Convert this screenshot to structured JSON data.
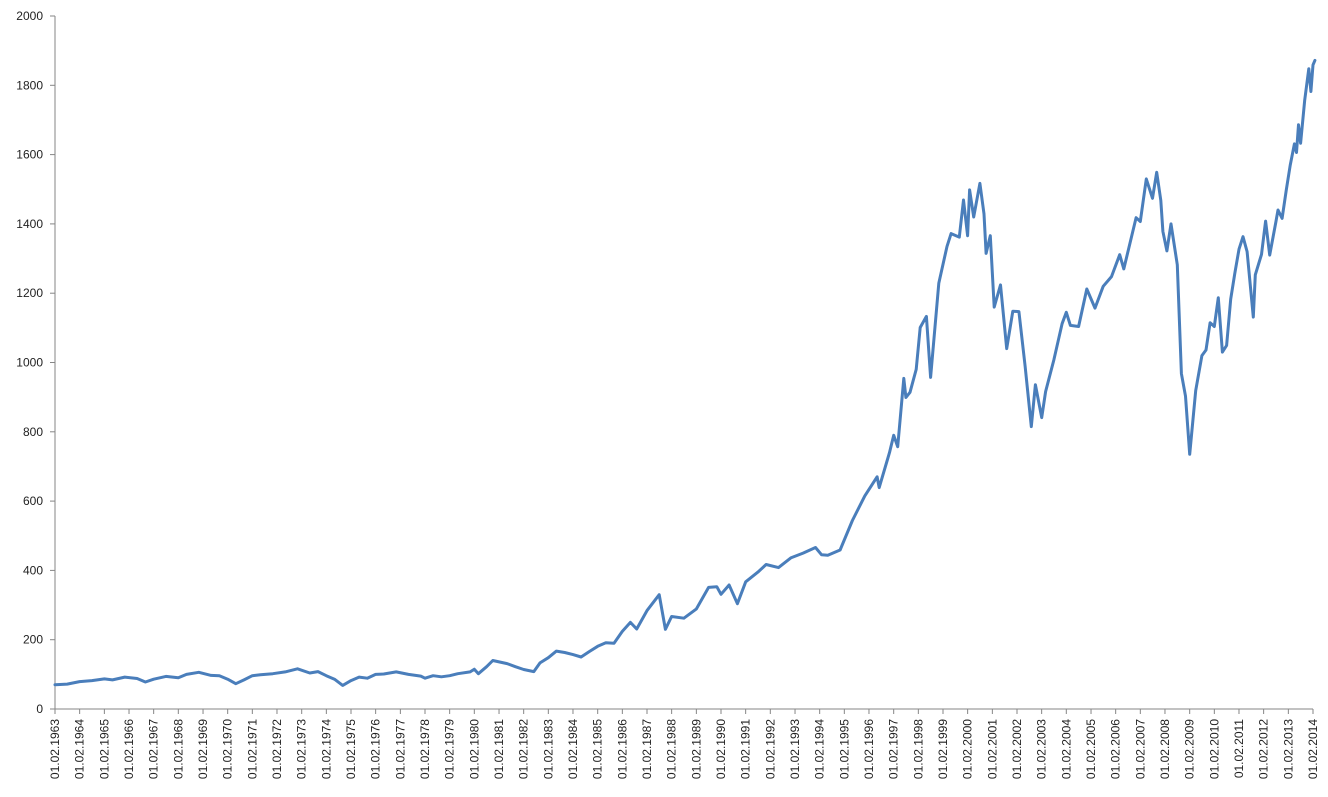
{
  "chart_data": {
    "type": "line",
    "title": "",
    "xlabel": "",
    "ylabel": "",
    "ylim": [
      0,
      2000
    ],
    "yticks": [
      0,
      200,
      400,
      600,
      800,
      1000,
      1200,
      1400,
      1600,
      1800,
      2000
    ],
    "xlim": [
      "1963-02-01",
      "2014-02-01"
    ],
    "xticks": [
      "01.02.1963",
      "01.02.1964",
      "01.02.1965",
      "01.02.1966",
      "01.02.1967",
      "01.02.1968",
      "01.02.1969",
      "01.02.1970",
      "01.02.1971",
      "01.02.1972",
      "01.02.1973",
      "01.02.1974",
      "01.02.1975",
      "01.02.1976",
      "01.02.1977",
      "01.02.1978",
      "01.02.1979",
      "01.02.1980",
      "01.02.1981",
      "01.02.1982",
      "01.02.1983",
      "01.02.1984",
      "01.02.1985",
      "01.02.1986",
      "01.02.1987",
      "01.02.1988",
      "01.02.1989",
      "01.02.1990",
      "01.02.1991",
      "01.02.1992",
      "01.02.1993",
      "01.02.1994",
      "01.02.1995",
      "01.02.1996",
      "01.02.1997",
      "01.02.1998",
      "01.02.1999",
      "01.02.2000",
      "01.02.2001",
      "01.02.2002",
      "01.02.2003",
      "01.02.2004",
      "01.02.2005",
      "01.02.2006",
      "01.02.2007",
      "01.02.2008",
      "01.02.2009",
      "01.02.2010",
      "01.02.2011",
      "01.02.2012",
      "01.02.2013",
      "01.02.2014"
    ],
    "grid": false,
    "legend": "none",
    "series": [
      {
        "color": "#4a7ebb",
        "points": [
          [
            "1963-02-01",
            70
          ],
          [
            "1963-08-01",
            72
          ],
          [
            "1964-02-01",
            79
          ],
          [
            "1964-08-01",
            82
          ],
          [
            "1965-02-01",
            87
          ],
          [
            "1965-06-01",
            84
          ],
          [
            "1965-12-01",
            92
          ],
          [
            "1966-06-01",
            88
          ],
          [
            "1966-10-01",
            78
          ],
          [
            "1967-02-01",
            86
          ],
          [
            "1967-08-01",
            94
          ],
          [
            "1968-02-01",
            90
          ],
          [
            "1968-06-01",
            100
          ],
          [
            "1968-12-01",
            106
          ],
          [
            "1969-06-01",
            97
          ],
          [
            "1969-10-01",
            96
          ],
          [
            "1970-02-01",
            86
          ],
          [
            "1970-06-01",
            73
          ],
          [
            "1970-10-01",
            84
          ],
          [
            "1971-02-01",
            96
          ],
          [
            "1971-06-01",
            99
          ],
          [
            "1971-12-01",
            102
          ],
          [
            "1972-06-01",
            107
          ],
          [
            "1972-12-01",
            116
          ],
          [
            "1973-06-01",
            104
          ],
          [
            "1973-10-01",
            108
          ],
          [
            "1974-02-01",
            96
          ],
          [
            "1974-06-01",
            86
          ],
          [
            "1974-10-01",
            68
          ],
          [
            "1975-02-01",
            82
          ],
          [
            "1975-06-01",
            92
          ],
          [
            "1975-10-01",
            89
          ],
          [
            "1976-02-01",
            100
          ],
          [
            "1976-06-01",
            101
          ],
          [
            "1976-12-01",
            107
          ],
          [
            "1977-06-01",
            100
          ],
          [
            "1977-12-01",
            95
          ],
          [
            "1978-02-01",
            89
          ],
          [
            "1978-06-01",
            96
          ],
          [
            "1978-10-01",
            93
          ],
          [
            "1979-02-01",
            96
          ],
          [
            "1979-06-01",
            102
          ],
          [
            "1979-12-01",
            107
          ],
          [
            "1980-02-01",
            115
          ],
          [
            "1980-04-01",
            102
          ],
          [
            "1980-08-01",
            122
          ],
          [
            "1980-11-01",
            140
          ],
          [
            "1981-06-01",
            131
          ],
          [
            "1981-10-01",
            122
          ],
          [
            "1982-02-01",
            114
          ],
          [
            "1982-07-01",
            108
          ],
          [
            "1982-10-01",
            133
          ],
          [
            "1983-02-01",
            148
          ],
          [
            "1983-06-01",
            167
          ],
          [
            "1983-10-01",
            163
          ],
          [
            "1984-02-01",
            157
          ],
          [
            "1984-06-01",
            150
          ],
          [
            "1984-10-01",
            166
          ],
          [
            "1985-02-01",
            181
          ],
          [
            "1985-06-01",
            191
          ],
          [
            "1985-10-01",
            190
          ],
          [
            "1986-02-01",
            224
          ],
          [
            "1986-06-01",
            250
          ],
          [
            "1986-09-01",
            231
          ],
          [
            "1987-02-01",
            284
          ],
          [
            "1987-08-01",
            330
          ],
          [
            "1987-11-01",
            230
          ],
          [
            "1988-02-01",
            267
          ],
          [
            "1988-08-01",
            262
          ],
          [
            "1989-02-01",
            289
          ],
          [
            "1989-08-01",
            351
          ],
          [
            "1989-12-01",
            353
          ],
          [
            "1990-02-01",
            331
          ],
          [
            "1990-06-01",
            358
          ],
          [
            "1990-10-01",
            304
          ],
          [
            "1991-02-01",
            367
          ],
          [
            "1991-08-01",
            395
          ],
          [
            "1991-12-01",
            417
          ],
          [
            "1992-06-01",
            408
          ],
          [
            "1992-12-01",
            436
          ],
          [
            "1993-06-01",
            450
          ],
          [
            "1993-12-01",
            466
          ],
          [
            "1994-03-01",
            445
          ],
          [
            "1994-06-01",
            444
          ],
          [
            "1994-12-01",
            459
          ],
          [
            "1995-06-01",
            544
          ],
          [
            "1995-12-01",
            615
          ],
          [
            "1996-06-01",
            670
          ],
          [
            "1996-07-01",
            639
          ],
          [
            "1996-12-01",
            740
          ],
          [
            "1997-02-01",
            790
          ],
          [
            "1997-04-01",
            757
          ],
          [
            "1997-07-01",
            954
          ],
          [
            "1997-08-01",
            899
          ],
          [
            "1997-10-01",
            914
          ],
          [
            "1998-01-01",
            980
          ],
          [
            "1998-03-01",
            1101
          ],
          [
            "1998-06-01",
            1133
          ],
          [
            "1998-08-01",
            957
          ],
          [
            "1998-12-01",
            1229
          ],
          [
            "1999-04-01",
            1335
          ],
          [
            "1999-06-01",
            1372
          ],
          [
            "1999-10-01",
            1362
          ],
          [
            "1999-12-01",
            1469
          ],
          [
            "2000-02-01",
            1366
          ],
          [
            "2000-03-01",
            1498
          ],
          [
            "2000-05-01",
            1420
          ],
          [
            "2000-08-01",
            1517
          ],
          [
            "2000-10-01",
            1429
          ],
          [
            "2000-11-01",
            1315
          ],
          [
            "2001-01-01",
            1366
          ],
          [
            "2001-03-01",
            1160
          ],
          [
            "2001-06-01",
            1224
          ],
          [
            "2001-09-01",
            1040
          ],
          [
            "2001-12-01",
            1148
          ],
          [
            "2002-03-01",
            1147
          ],
          [
            "2002-06-01",
            990
          ],
          [
            "2002-09-01",
            815
          ],
          [
            "2002-11-01",
            936
          ],
          [
            "2003-02-01",
            841
          ],
          [
            "2003-04-01",
            916
          ],
          [
            "2003-08-01",
            1008
          ],
          [
            "2003-12-01",
            1112
          ],
          [
            "2004-02-01",
            1145
          ],
          [
            "2004-04-01",
            1107
          ],
          [
            "2004-08-01",
            1104
          ],
          [
            "2004-12-01",
            1212
          ],
          [
            "2005-04-01",
            1157
          ],
          [
            "2005-08-01",
            1220
          ],
          [
            "2005-12-01",
            1248
          ],
          [
            "2006-04-01",
            1311
          ],
          [
            "2006-06-01",
            1270
          ],
          [
            "2006-12-01",
            1418
          ],
          [
            "2007-02-01",
            1407
          ],
          [
            "2007-05-01",
            1530
          ],
          [
            "2007-08-01",
            1474
          ],
          [
            "2007-10-01",
            1549
          ],
          [
            "2007-12-01",
            1468
          ],
          [
            "2008-01-01",
            1378
          ],
          [
            "2008-03-01",
            1322
          ],
          [
            "2008-05-01",
            1400
          ],
          [
            "2008-08-01",
            1282
          ],
          [
            "2008-10-01",
            968
          ],
          [
            "2008-12-01",
            903
          ],
          [
            "2009-02-01",
            735
          ],
          [
            "2009-05-01",
            919
          ],
          [
            "2009-08-01",
            1020
          ],
          [
            "2009-10-01",
            1036
          ],
          [
            "2009-12-01",
            1115
          ],
          [
            "2010-02-01",
            1104
          ],
          [
            "2010-04-01",
            1187
          ],
          [
            "2010-06-01",
            1030
          ],
          [
            "2010-08-01",
            1049
          ],
          [
            "2010-10-01",
            1183
          ],
          [
            "2010-12-01",
            1257
          ],
          [
            "2011-02-01",
            1327
          ],
          [
            "2011-04-01",
            1363
          ],
          [
            "2011-06-01",
            1320
          ],
          [
            "2011-09-01",
            1131
          ],
          [
            "2011-10-01",
            1253
          ],
          [
            "2012-01-01",
            1312
          ],
          [
            "2012-03-01",
            1408
          ],
          [
            "2012-05-01",
            1310
          ],
          [
            "2012-08-01",
            1406
          ],
          [
            "2012-09-01",
            1440
          ],
          [
            "2012-11-01",
            1416
          ],
          [
            "2013-01-01",
            1498
          ],
          [
            "2013-03-01",
            1569
          ],
          [
            "2013-05-01",
            1631
          ],
          [
            "2013-06-01",
            1606
          ],
          [
            "2013-07-01",
            1686
          ],
          [
            "2013-08-01",
            1633
          ],
          [
            "2013-10-01",
            1757
          ],
          [
            "2013-12-01",
            1848
          ],
          [
            "2014-01-01",
            1782
          ],
          [
            "2014-02-01",
            1859
          ],
          [
            "2014-03-01",
            1872
          ]
        ]
      }
    ]
  }
}
